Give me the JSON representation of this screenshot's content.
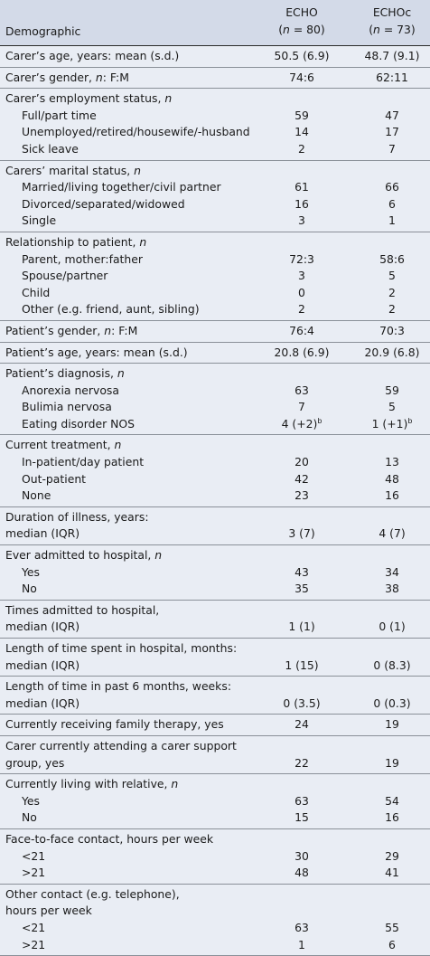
{
  "header": {
    "label": "Demographic",
    "col1_name": "ECHO",
    "col1_n": "(n = 80)",
    "col2_name": "ECHOc",
    "col2_n": "(n = 73)"
  },
  "sections": [
    {
      "rows": [
        {
          "label": "Carer’s age, years: mean (s.d.)",
          "v1": "50.5 (6.9)",
          "v2": "48.7 (9.1)"
        }
      ]
    },
    {
      "rows": [
        {
          "label": "Carer’s gender, n: F:M",
          "v1": "74:6",
          "v2": "62:11"
        }
      ]
    },
    {
      "rows": [
        {
          "label": "Carer’s employment status, n"
        },
        {
          "label": "Full/part time",
          "v1": "59",
          "v2": "47",
          "sub": true
        },
        {
          "label": "Unemployed/retired/housewife/-husband",
          "v1": "14",
          "v2": "17",
          "sub": true
        },
        {
          "label": "Sick leave",
          "v1": "2",
          "v2": "7",
          "sub": true
        }
      ]
    },
    {
      "rows": [
        {
          "label": "Carers’ marital status, n"
        },
        {
          "label": "Married/living together/civil partner",
          "v1": "61",
          "v2": "66",
          "sub": true
        },
        {
          "label": "Divorced/separated/widowed",
          "v1": "16",
          "v2": "6",
          "sub": true
        },
        {
          "label": "Single",
          "v1": "3",
          "v2": "1",
          "sub": true
        }
      ]
    },
    {
      "rows": [
        {
          "label": "Relationship to patient, n"
        },
        {
          "label": "Parent, mother:father",
          "v1": "72:3",
          "v2": "58:6",
          "sub": true
        },
        {
          "label": "Spouse/partner",
          "v1": "3",
          "v2": "5",
          "sub": true
        },
        {
          "label": "Child",
          "v1": "0",
          "v2": "2",
          "sub": true
        },
        {
          "label": "Other (e.g. friend, aunt, sibling)",
          "v1": "2",
          "v2": "2",
          "sub": true
        }
      ]
    },
    {
      "rows": [
        {
          "label": "Patient’s gender, n: F:M",
          "v1": "76:4",
          "v2": "70:3"
        }
      ]
    },
    {
      "rows": [
        {
          "label": "Patient’s age, years: mean (s.d.)",
          "v1": "20.8 (6.9)",
          "v2": "20.9 (6.8)"
        }
      ]
    },
    {
      "rows": [
        {
          "label": "Patient’s diagnosis, n"
        },
        {
          "label": "Anorexia nervosa",
          "v1": "63",
          "v2": "59",
          "sub": true
        },
        {
          "label": "Bulimia nervosa",
          "v1": "7",
          "v2": "5",
          "sub": true
        },
        {
          "label": "Eating disorder NOS",
          "v1": "4 (+2)",
          "v2": "1 (+1)",
          "sup1": "b",
          "sup2": "b",
          "sub": true
        }
      ]
    },
    {
      "rows": [
        {
          "label": "Current treatment, n"
        },
        {
          "label": "In-patient/day patient",
          "v1": "20",
          "v2": "13",
          "sub": true
        },
        {
          "label": "Out-patient",
          "v1": "42",
          "v2": "48",
          "sub": true
        },
        {
          "label": "None",
          "v1": "23",
          "v2": "16",
          "sub": true
        }
      ]
    },
    {
      "rows": [
        {
          "label": "Duration of illness, years:"
        },
        {
          "label": "median (IQR)",
          "v1": "3 (7)",
          "v2": "4 (7)"
        }
      ]
    },
    {
      "rows": [
        {
          "label": "Ever admitted to hospital, n"
        },
        {
          "label": "Yes",
          "v1": "43",
          "v2": "34",
          "sub": true
        },
        {
          "label": "No",
          "v1": "35",
          "v2": "38",
          "sub": true
        }
      ]
    },
    {
      "rows": [
        {
          "label": "Times admitted to hospital,"
        },
        {
          "label": "median (IQR)",
          "v1": "1 (1)",
          "v2": "0 (1)"
        }
      ]
    },
    {
      "rows": [
        {
          "label": "Length of time spent in hospital, months:"
        },
        {
          "label": "median (IQR)",
          "v1": "1 (15)",
          "v2": "0 (8.3)"
        }
      ]
    },
    {
      "rows": [
        {
          "label": "Length of time in past 6 months, weeks:"
        },
        {
          "label": "median (IQR)",
          "v1": "0 (3.5)",
          "v2": "0 (0.3)"
        }
      ]
    },
    {
      "rows": [
        {
          "label": "Currently receiving family therapy, yes",
          "v1": "24",
          "v2": "19"
        }
      ]
    },
    {
      "rows": [
        {
          "label": "Carer currently attending a carer support"
        },
        {
          "label": "group, yes",
          "v1": "22",
          "v2": "19"
        }
      ]
    },
    {
      "rows": [
        {
          "label": "Currently living with relative, n"
        },
        {
          "label": "Yes",
          "v1": "63",
          "v2": "54",
          "sub": true
        },
        {
          "label": "No",
          "v1": "15",
          "v2": "16",
          "sub": true
        }
      ]
    },
    {
      "rows": [
        {
          "label": "Face-to-face contact, hours per week"
        },
        {
          "label": "<21",
          "v1": "30",
          "v2": "29",
          "sub": true
        },
        {
          "label": ">21",
          "v1": "48",
          "v2": "41",
          "sub": true
        }
      ]
    },
    {
      "rows": [
        {
          "label": "Other contact (e.g. telephone),"
        },
        {
          "label": "hours per week"
        },
        {
          "label": "<21",
          "v1": "63",
          "v2": "55",
          "sub": true
        },
        {
          "label": ">21",
          "v1": "1",
          "v2": "6",
          "sub": true
        }
      ]
    }
  ]
}
